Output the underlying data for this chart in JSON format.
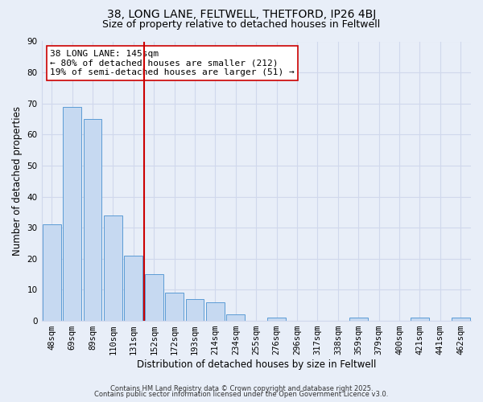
{
  "title_line1": "38, LONG LANE, FELTWELL, THETFORD, IP26 4BJ",
  "title_line2": "Size of property relative to detached houses in Feltwell",
  "bar_labels": [
    "48sqm",
    "69sqm",
    "89sqm",
    "110sqm",
    "131sqm",
    "152sqm",
    "172sqm",
    "193sqm",
    "214sqm",
    "234sqm",
    "255sqm",
    "276sqm",
    "296sqm",
    "317sqm",
    "338sqm",
    "359sqm",
    "379sqm",
    "400sqm",
    "421sqm",
    "441sqm",
    "462sqm"
  ],
  "bar_values": [
    31,
    69,
    65,
    34,
    21,
    15,
    9,
    7,
    6,
    2,
    0,
    1,
    0,
    0,
    0,
    1,
    0,
    0,
    1,
    0,
    1
  ],
  "bar_color": "#c6d9f1",
  "bar_edge_color": "#5b9bd5",
  "ylim": [
    0,
    90
  ],
  "yticks": [
    0,
    10,
    20,
    30,
    40,
    50,
    60,
    70,
    80,
    90
  ],
  "ylabel": "Number of detached properties",
  "xlabel": "Distribution of detached houses by size in Feltwell",
  "vline_index": 4.5,
  "vline_color": "#cc0000",
  "annotation_title": "38 LONG LANE: 145sqm",
  "annotation_line1": "← 80% of detached houses are smaller (212)",
  "annotation_line2": "19% of semi-detached houses are larger (51) →",
  "footer_line1": "Contains HM Land Registry data © Crown copyright and database right 2025.",
  "footer_line2": "Contains public sector information licensed under the Open Government Licence v3.0.",
  "background_color": "#e8eef8",
  "grid_color": "#d0d8ec",
  "title_fontsize": 10,
  "subtitle_fontsize": 9,
  "axis_label_fontsize": 8.5,
  "tick_fontsize": 7.5,
  "annotation_fontsize": 8,
  "footer_fontsize": 6
}
